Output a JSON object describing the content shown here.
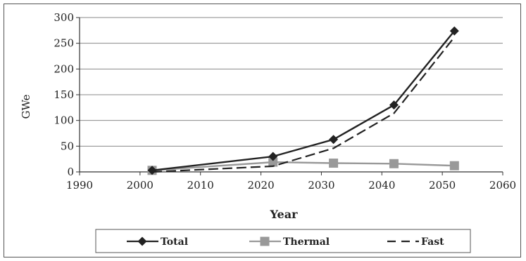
{
  "chart_data": {
    "type": "line",
    "title": "",
    "xlabel": "Year",
    "ylabel": "GWe",
    "xlim": [
      1990,
      2060
    ],
    "ylim": [
      0,
      300
    ],
    "x_ticks": [
      "1990",
      "2000",
      "2010",
      "2020",
      "2030",
      "2040",
      "2050",
      "2060"
    ],
    "y_ticks": [
      "0",
      "50",
      "100",
      "150",
      "200",
      "250",
      "300"
    ],
    "grid": "horizontal",
    "legend_position": "bottom",
    "series": [
      {
        "name": "Total",
        "color": "#222222",
        "marker": "diamond",
        "line": "solid",
        "x": [
          2002,
          2022,
          2032,
          2042,
          2052
        ],
        "y": [
          3,
          30,
          63,
          130,
          274
        ]
      },
      {
        "name": "Thermal",
        "color": "#999999",
        "marker": "square",
        "line": "solid",
        "x": [
          2002,
          2022,
          2032,
          2042,
          2052
        ],
        "y": [
          3,
          19,
          17,
          16,
          12
        ]
      },
      {
        "name": "Fast",
        "color": "#222222",
        "marker": "none",
        "line": "dashed",
        "x": [
          2002,
          2022,
          2032,
          2042,
          2052
        ],
        "y": [
          0,
          11,
          46,
          114,
          262
        ]
      }
    ]
  }
}
